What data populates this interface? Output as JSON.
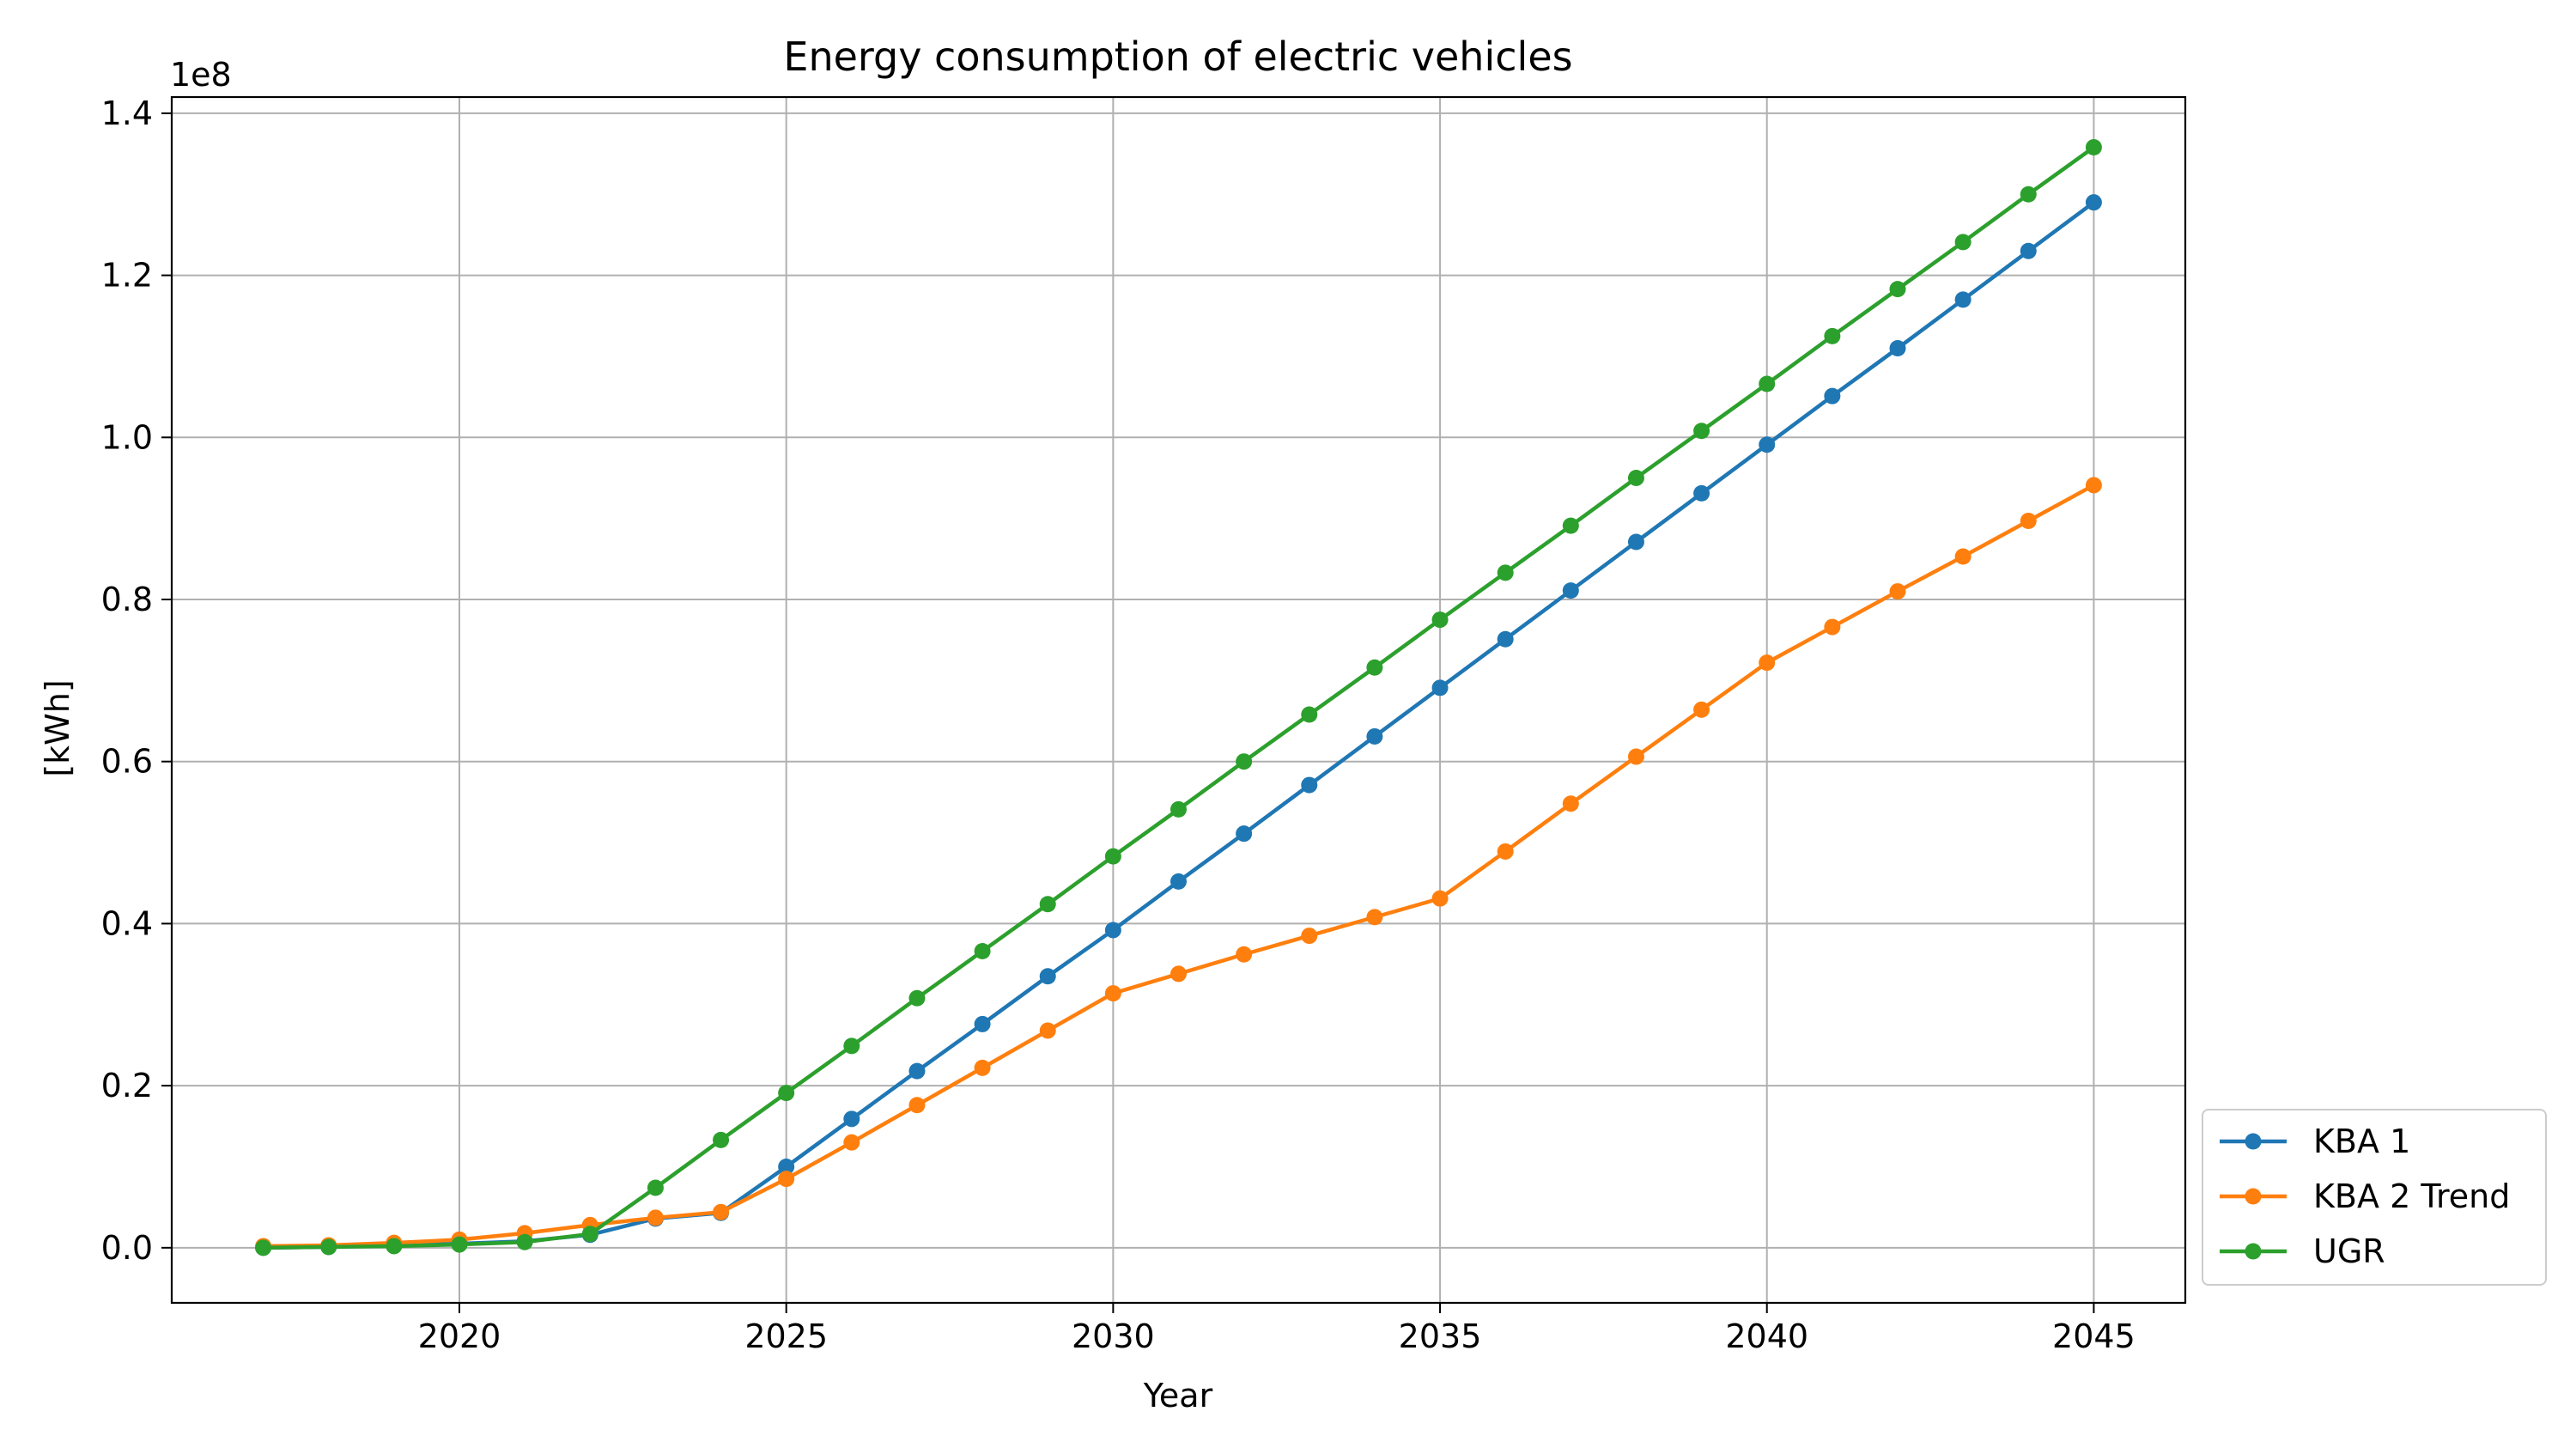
{
  "chart_data": {
    "type": "line",
    "title": "Energy consumption of electric vehicles",
    "xlabel": "Year",
    "ylabel": "[kWh]",
    "offset_text": "1e8",
    "xlim": [
      2015.6,
      2046.4
    ],
    "ylim": [
      -6800000,
      142000000
    ],
    "xticks": [
      2020,
      2025,
      2030,
      2035,
      2040,
      2045
    ],
    "xtick_labels": [
      "2020",
      "2025",
      "2030",
      "2035",
      "2040",
      "2045"
    ],
    "yticks": [
      0,
      20000000,
      40000000,
      60000000,
      80000000,
      100000000,
      120000000,
      140000000
    ],
    "ytick_labels": [
      "0.0",
      "0.2",
      "0.4",
      "0.6",
      "0.8",
      "1.0",
      "1.2",
      "1.4"
    ],
    "grid": true,
    "legend_position": "outside-lower-right",
    "x": [
      2017,
      2018,
      2019,
      2020,
      2021,
      2022,
      2023,
      2024,
      2025,
      2026,
      2027,
      2028,
      2029,
      2030,
      2031,
      2032,
      2033,
      2034,
      2035,
      2036,
      2037,
      2038,
      2039,
      2040,
      2041,
      2042,
      2043,
      2044,
      2045
    ],
    "series": [
      {
        "name": "KBA 1",
        "color": "#1f77b4",
        "values": [
          0,
          100000,
          300000,
          500000,
          800000,
          1600000,
          3600000,
          4300000,
          10000000,
          15900000,
          21800000,
          27600000,
          33500000,
          39200000,
          45200000,
          51100000,
          57100000,
          63100000,
          69100000,
          75100000,
          81100000,
          87100000,
          93100000,
          99100000,
          105100000,
          111000000,
          117000000,
          123000000,
          129000000
        ]
      },
      {
        "name": "KBA 2 Trend",
        "color": "#ff7f0e",
        "values": [
          200000,
          300000,
          600000,
          1000000,
          1800000,
          2800000,
          3700000,
          4400000,
          8500000,
          13000000,
          17600000,
          22200000,
          26800000,
          31400000,
          33800000,
          36200000,
          38500000,
          40800000,
          43100000,
          48900000,
          54800000,
          60600000,
          66400000,
          72200000,
          76600000,
          81000000,
          85300000,
          89700000,
          94100000
        ]
      },
      {
        "name": "UGR",
        "color": "#2ca02c",
        "values": [
          0,
          100000,
          200000,
          400000,
          700000,
          1700000,
          7400000,
          13300000,
          19100000,
          24900000,
          30800000,
          36600000,
          42400000,
          48300000,
          54100000,
          60000000,
          65800000,
          71600000,
          77500000,
          83300000,
          89100000,
          95000000,
          100800000,
          106600000,
          112500000,
          118300000,
          124100000,
          130000000,
          135800000
        ]
      }
    ]
  }
}
